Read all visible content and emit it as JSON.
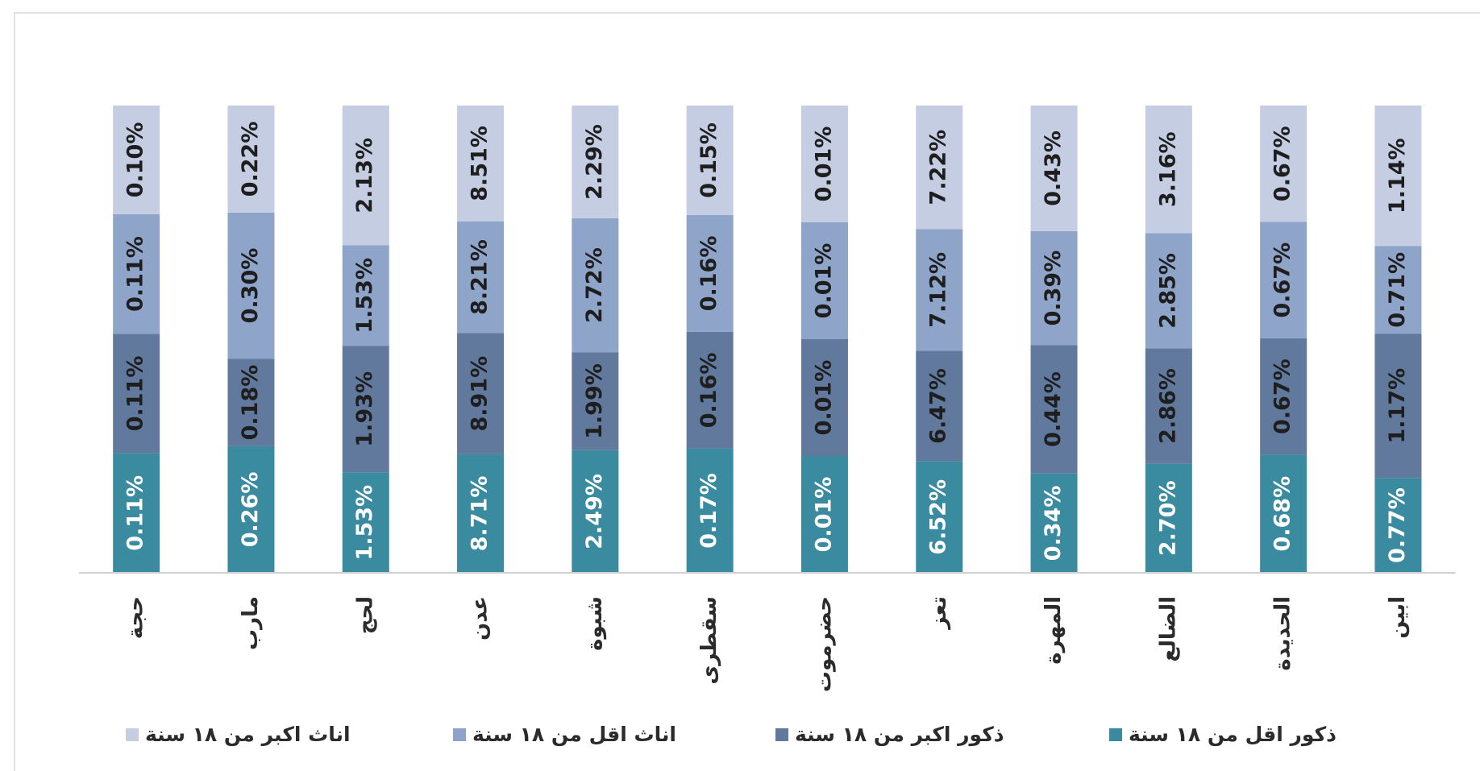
{
  "chart_data": {
    "type": "stacked_bar_100",
    "categories": [
      "حجة",
      "مارب",
      "لحج",
      "عدن",
      "شبوة",
      "سقطرى",
      "حضرموت",
      "تعز",
      "المهرة",
      "الضالع",
      "الحديدة",
      "ابين"
    ],
    "series": [
      {
        "name": "ذكور اقل من ١٨ سنة",
        "color": "#3a8aa0",
        "label_color": "#ffffff",
        "values": [
          0.11,
          0.26,
          1.53,
          8.71,
          2.49,
          0.17,
          0.01,
          6.52,
          0.34,
          2.7,
          0.68,
          0.77
        ],
        "value_labels": [
          "0.11%",
          "0.26%",
          "1.53%",
          "8.71%",
          "2.49%",
          "0.17%",
          "0.01%",
          "6.52%",
          "0.34%",
          "2.70%",
          "0.68%",
          "0.77%"
        ]
      },
      {
        "name": "ذكور اكبر من ١٨ سنة",
        "color": "#60799c",
        "label_color": "#1e1e1e",
        "values": [
          0.11,
          0.18,
          1.93,
          8.91,
          1.99,
          0.16,
          0.01,
          6.47,
          0.44,
          2.86,
          0.67,
          1.17
        ],
        "value_labels": [
          "0.11%",
          "0.18%",
          "1.93%",
          "8.91%",
          "1.99%",
          "0.16%",
          "0.01%",
          "6.47%",
          "0.44%",
          "2.86%",
          "0.67%",
          "1.17%"
        ]
      },
      {
        "name": "اناث اقل من ١٨ سنة",
        "color": "#8ea4c8",
        "label_color": "#1e1e1e",
        "values": [
          0.11,
          0.3,
          1.53,
          8.21,
          2.72,
          0.16,
          0.01,
          7.12,
          0.39,
          2.85,
          0.67,
          0.71
        ],
        "value_labels": [
          "0.11%",
          "0.30%",
          "1.53%",
          "8.21%",
          "2.72%",
          "0.16%",
          "0.01%",
          "7.12%",
          "0.39%",
          "2.85%",
          "0.67%",
          "0.71%"
        ]
      },
      {
        "name": "اناث اكبر من ١٨ سنة",
        "color": "#c4cde2",
        "label_color": "#1e1e1e",
        "values": [
          0.1,
          0.22,
          2.13,
          8.51,
          2.29,
          0.15,
          0.01,
          7.22,
          0.43,
          3.16,
          0.67,
          1.14
        ],
        "value_labels": [
          "0.10%",
          "0.22%",
          "2.13%",
          "8.51%",
          "2.29%",
          "0.15%",
          "0.01%",
          "7.22%",
          "0.43%",
          "3.16%",
          "0.67%",
          "1.14%"
        ]
      }
    ]
  }
}
